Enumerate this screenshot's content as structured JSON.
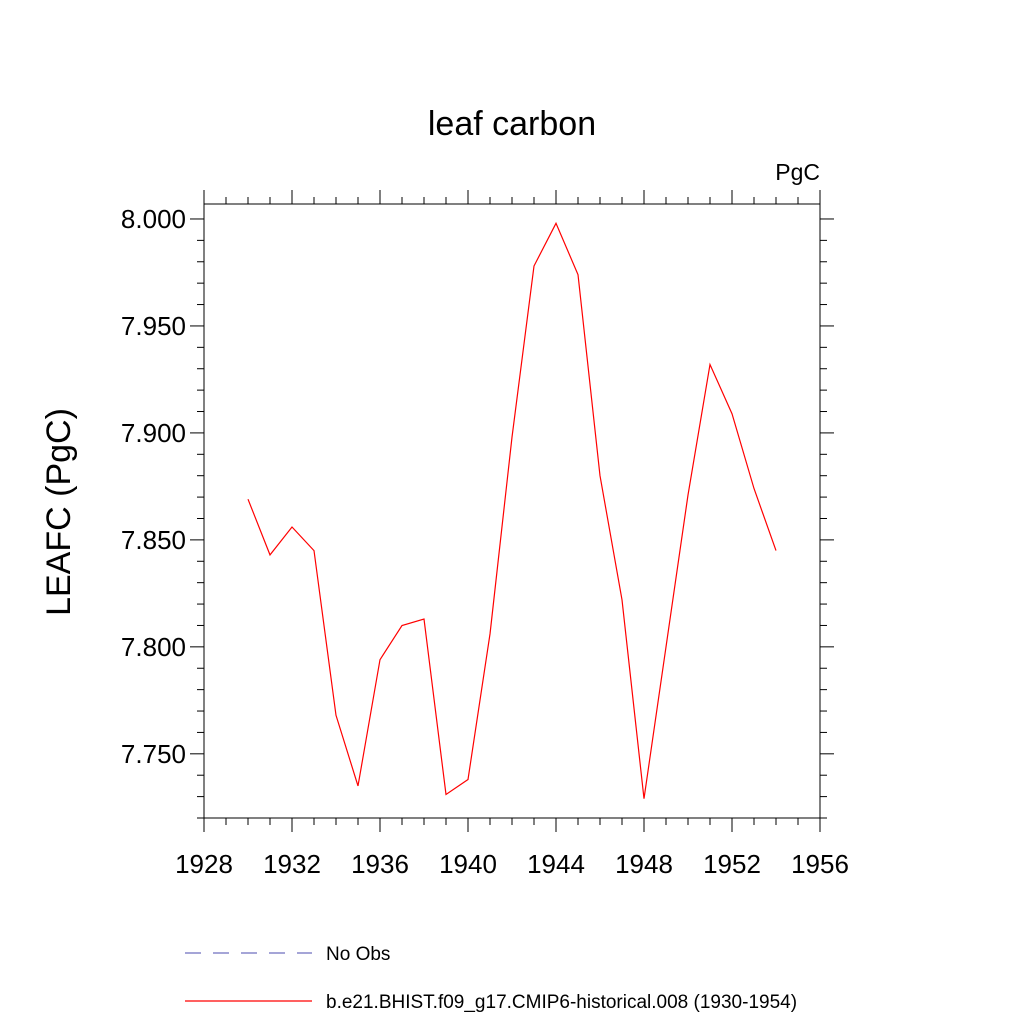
{
  "chart_data": {
    "type": "line",
    "title": "leaf carbon",
    "units_label": "PgC",
    "ylabel": "LEAFC  (PgC)",
    "xlabel": "",
    "xlim": [
      1928,
      1956
    ],
    "ylim": [
      7.72,
      8.007
    ],
    "xticks": [
      "1928",
      "1932",
      "1936",
      "1940",
      "1944",
      "1948",
      "1952",
      "1956"
    ],
    "yticks": [
      "7.750",
      "7.800",
      "7.850",
      "7.900",
      "7.950",
      "8.000"
    ],
    "grid": false,
    "legend_position": "bottom",
    "series": [
      {
        "name": "No Obs",
        "color": "#6f6fbf",
        "dash": "dashed",
        "x": [],
        "y": []
      },
      {
        "name": "b.e21.BHIST.f09_g17.CMIP6-historical.008 (1930-1954)",
        "color": "#ff0000",
        "dash": "solid",
        "x": [
          1930,
          1931,
          1932,
          1933,
          1934,
          1935,
          1936,
          1937,
          1938,
          1939,
          1940,
          1941,
          1942,
          1943,
          1944,
          1945,
          1946,
          1947,
          1948,
          1949,
          1950,
          1951,
          1952,
          1953,
          1954
        ],
        "y": [
          7.869,
          7.843,
          7.856,
          7.845,
          7.768,
          7.735,
          7.794,
          7.81,
          7.813,
          7.731,
          7.738,
          7.806,
          7.898,
          7.978,
          7.998,
          7.974,
          7.88,
          7.822,
          7.729,
          7.8,
          7.871,
          7.932,
          7.909,
          7.874,
          7.845
        ]
      }
    ]
  }
}
